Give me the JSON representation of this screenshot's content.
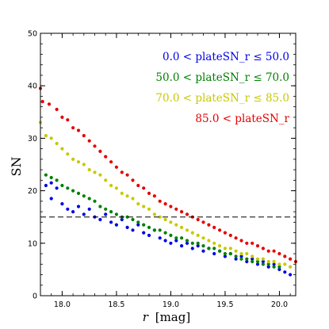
{
  "chart_data": {
    "type": "scatter",
    "xlabel_var": "r",
    "xlabel_unit": "[mag]",
    "ylabel": "SN",
    "xlim": [
      17.8,
      20.15
    ],
    "ylim": [
      0,
      50
    ],
    "xticks": [
      "18.0",
      "18.5",
      "19.0",
      "19.5",
      "20.0"
    ],
    "yticks": [
      "0",
      "10",
      "20",
      "30",
      "40",
      "50"
    ],
    "grid": false,
    "legend_position": "top-right",
    "reference_line": {
      "y": 15,
      "style": "dashed"
    },
    "series": [
      {
        "name": "0.0 < plateSN_r ≤ 50.0",
        "color": "#0000e6",
        "points": [
          [
            17.85,
            21.0
          ],
          [
            17.9,
            21.5
          ],
          [
            17.95,
            20.5
          ],
          [
            17.9,
            18.5
          ],
          [
            18.0,
            17.5
          ],
          [
            18.05,
            16.5
          ],
          [
            18.1,
            16.0
          ],
          [
            18.15,
            17.0
          ],
          [
            18.2,
            15.5
          ],
          [
            18.25,
            16.5
          ],
          [
            18.3,
            15.0
          ],
          [
            18.35,
            14.5
          ],
          [
            18.4,
            15.5
          ],
          [
            18.45,
            14.0
          ],
          [
            18.5,
            13.5
          ],
          [
            18.55,
            14.5
          ],
          [
            18.6,
            13.0
          ],
          [
            18.65,
            12.5
          ],
          [
            18.7,
            13.5
          ],
          [
            18.75,
            12.0
          ],
          [
            18.8,
            11.5
          ],
          [
            18.85,
            12.5
          ],
          [
            18.9,
            11.0
          ],
          [
            18.95,
            10.5
          ],
          [
            19.0,
            10.0
          ],
          [
            19.05,
            10.5
          ],
          [
            19.1,
            9.5
          ],
          [
            19.15,
            10.0
          ],
          [
            19.2,
            9.0
          ],
          [
            19.25,
            9.5
          ],
          [
            19.3,
            8.5
          ],
          [
            19.35,
            9.0
          ],
          [
            19.4,
            8.0
          ],
          [
            19.45,
            8.5
          ],
          [
            19.5,
            7.5
          ],
          [
            19.55,
            8.0
          ],
          [
            19.6,
            7.0
          ],
          [
            19.65,
            7.5
          ],
          [
            19.7,
            6.5
          ],
          [
            19.75,
            7.0
          ],
          [
            19.8,
            6.0
          ],
          [
            19.85,
            6.5
          ],
          [
            19.9,
            5.5
          ],
          [
            19.95,
            6.0
          ],
          [
            20.0,
            5.0
          ],
          [
            20.05,
            4.5
          ],
          [
            20.1,
            4.0
          ]
        ]
      },
      {
        "name": "50.0 < plateSN_r ≤ 70.0",
        "color": "#008000",
        "points": [
          [
            17.85,
            23.0
          ],
          [
            17.9,
            22.5
          ],
          [
            17.95,
            22.0
          ],
          [
            18.0,
            21.0
          ],
          [
            18.05,
            20.5
          ],
          [
            18.1,
            20.0
          ],
          [
            18.15,
            19.5
          ],
          [
            18.2,
            19.0
          ],
          [
            18.25,
            18.5
          ],
          [
            18.3,
            18.0
          ],
          [
            18.35,
            17.0
          ],
          [
            18.4,
            16.5
          ],
          [
            18.45,
            16.0
          ],
          [
            18.5,
            15.5
          ],
          [
            18.55,
            15.0
          ],
          [
            18.6,
            15.0
          ],
          [
            18.65,
            14.5
          ],
          [
            18.7,
            14.0
          ],
          [
            18.75,
            13.5
          ],
          [
            18.8,
            13.0
          ],
          [
            18.85,
            12.5
          ],
          [
            18.9,
            12.5
          ],
          [
            18.95,
            12.0
          ],
          [
            19.0,
            11.5
          ],
          [
            19.05,
            11.0
          ],
          [
            19.1,
            11.0
          ],
          [
            19.15,
            10.5
          ],
          [
            19.2,
            10.0
          ],
          [
            19.25,
            10.0
          ],
          [
            19.3,
            9.5
          ],
          [
            19.35,
            9.0
          ],
          [
            19.4,
            9.0
          ],
          [
            19.45,
            8.5
          ],
          [
            19.5,
            8.0
          ],
          [
            19.55,
            8.0
          ],
          [
            19.6,
            7.5
          ],
          [
            19.65,
            7.0
          ],
          [
            19.7,
            7.0
          ],
          [
            19.75,
            6.5
          ],
          [
            19.8,
            6.5
          ],
          [
            19.85,
            6.0
          ],
          [
            19.9,
            6.0
          ],
          [
            19.95,
            5.5
          ],
          [
            20.0,
            5.5
          ]
        ]
      },
      {
        "name": "70.0 < plateSN_r ≤ 85.0",
        "color": "#c8c800",
        "points": [
          [
            17.8,
            33.0
          ],
          [
            17.85,
            30.5
          ],
          [
            17.9,
            30.0
          ],
          [
            17.95,
            29.0
          ],
          [
            18.0,
            28.0
          ],
          [
            18.05,
            27.0
          ],
          [
            18.1,
            26.0
          ],
          [
            18.15,
            25.5
          ],
          [
            18.2,
            25.0
          ],
          [
            18.25,
            24.0
          ],
          [
            18.3,
            23.5
          ],
          [
            18.35,
            23.0
          ],
          [
            18.4,
            22.0
          ],
          [
            18.45,
            21.0
          ],
          [
            18.5,
            20.5
          ],
          [
            18.55,
            19.5
          ],
          [
            18.6,
            19.0
          ],
          [
            18.65,
            18.5
          ],
          [
            18.7,
            17.5
          ],
          [
            18.75,
            17.0
          ],
          [
            18.8,
            16.5
          ],
          [
            18.85,
            15.5
          ],
          [
            18.9,
            15.0
          ],
          [
            18.95,
            14.5
          ],
          [
            19.0,
            14.0
          ],
          [
            19.05,
            13.5
          ],
          [
            19.1,
            13.0
          ],
          [
            19.15,
            12.5
          ],
          [
            19.2,
            12.0
          ],
          [
            19.25,
            11.5
          ],
          [
            19.3,
            11.0
          ],
          [
            19.35,
            10.5
          ],
          [
            19.4,
            10.0
          ],
          [
            19.45,
            9.5
          ],
          [
            19.5,
            9.0
          ],
          [
            19.55,
            9.0
          ],
          [
            19.6,
            8.5
          ],
          [
            19.65,
            8.0
          ],
          [
            19.7,
            8.0
          ],
          [
            19.75,
            7.5
          ],
          [
            19.8,
            7.0
          ],
          [
            19.85,
            7.0
          ],
          [
            19.9,
            6.5
          ],
          [
            19.95,
            6.5
          ],
          [
            20.0,
            6.0
          ],
          [
            20.05,
            6.0
          ],
          [
            20.1,
            5.5
          ]
        ]
      },
      {
        "name": "85.0 < plateSN_r",
        "color": "#e60000",
        "points": [
          [
            17.8,
            39.5
          ],
          [
            17.82,
            37.0
          ],
          [
            17.88,
            36.5
          ],
          [
            17.95,
            35.5
          ],
          [
            18.0,
            34.0
          ],
          [
            18.05,
            33.5
          ],
          [
            18.1,
            32.0
          ],
          [
            18.15,
            31.5
          ],
          [
            18.2,
            30.5
          ],
          [
            18.25,
            29.5
          ],
          [
            18.3,
            28.5
          ],
          [
            18.35,
            27.5
          ],
          [
            18.4,
            26.5
          ],
          [
            18.45,
            25.5
          ],
          [
            18.5,
            24.5
          ],
          [
            18.55,
            23.5
          ],
          [
            18.6,
            23.0
          ],
          [
            18.65,
            22.0
          ],
          [
            18.7,
            21.0
          ],
          [
            18.75,
            20.5
          ],
          [
            18.8,
            19.5
          ],
          [
            18.85,
            19.0
          ],
          [
            18.9,
            18.0
          ],
          [
            18.95,
            17.5
          ],
          [
            19.0,
            17.0
          ],
          [
            19.05,
            16.5
          ],
          [
            19.1,
            16.0
          ],
          [
            19.15,
            15.5
          ],
          [
            19.2,
            15.0
          ],
          [
            19.25,
            14.5
          ],
          [
            19.3,
            14.0
          ],
          [
            19.35,
            13.5
          ],
          [
            19.4,
            13.0
          ],
          [
            19.45,
            12.5
          ],
          [
            19.5,
            12.0
          ],
          [
            19.55,
            11.5
          ],
          [
            19.6,
            11.0
          ],
          [
            19.65,
            10.5
          ],
          [
            19.7,
            10.0
          ],
          [
            19.75,
            10.0
          ],
          [
            19.8,
            9.5
          ],
          [
            19.85,
            9.0
          ],
          [
            19.9,
            8.5
          ],
          [
            19.95,
            8.5
          ],
          [
            20.0,
            8.0
          ],
          [
            20.05,
            7.5
          ],
          [
            20.1,
            7.0
          ],
          [
            20.15,
            6.5
          ]
        ]
      }
    ]
  }
}
